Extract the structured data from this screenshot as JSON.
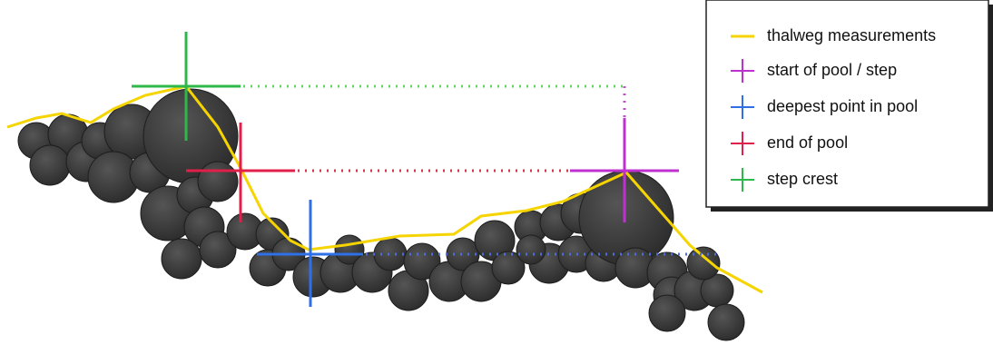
{
  "legend": {
    "items": [
      {
        "label": "thalweg measurements"
      },
      {
        "label": "start of pool / step"
      },
      {
        "label": "deepest point in pool"
      },
      {
        "label": "end of pool"
      },
      {
        "label": "step crest"
      }
    ]
  }
}
